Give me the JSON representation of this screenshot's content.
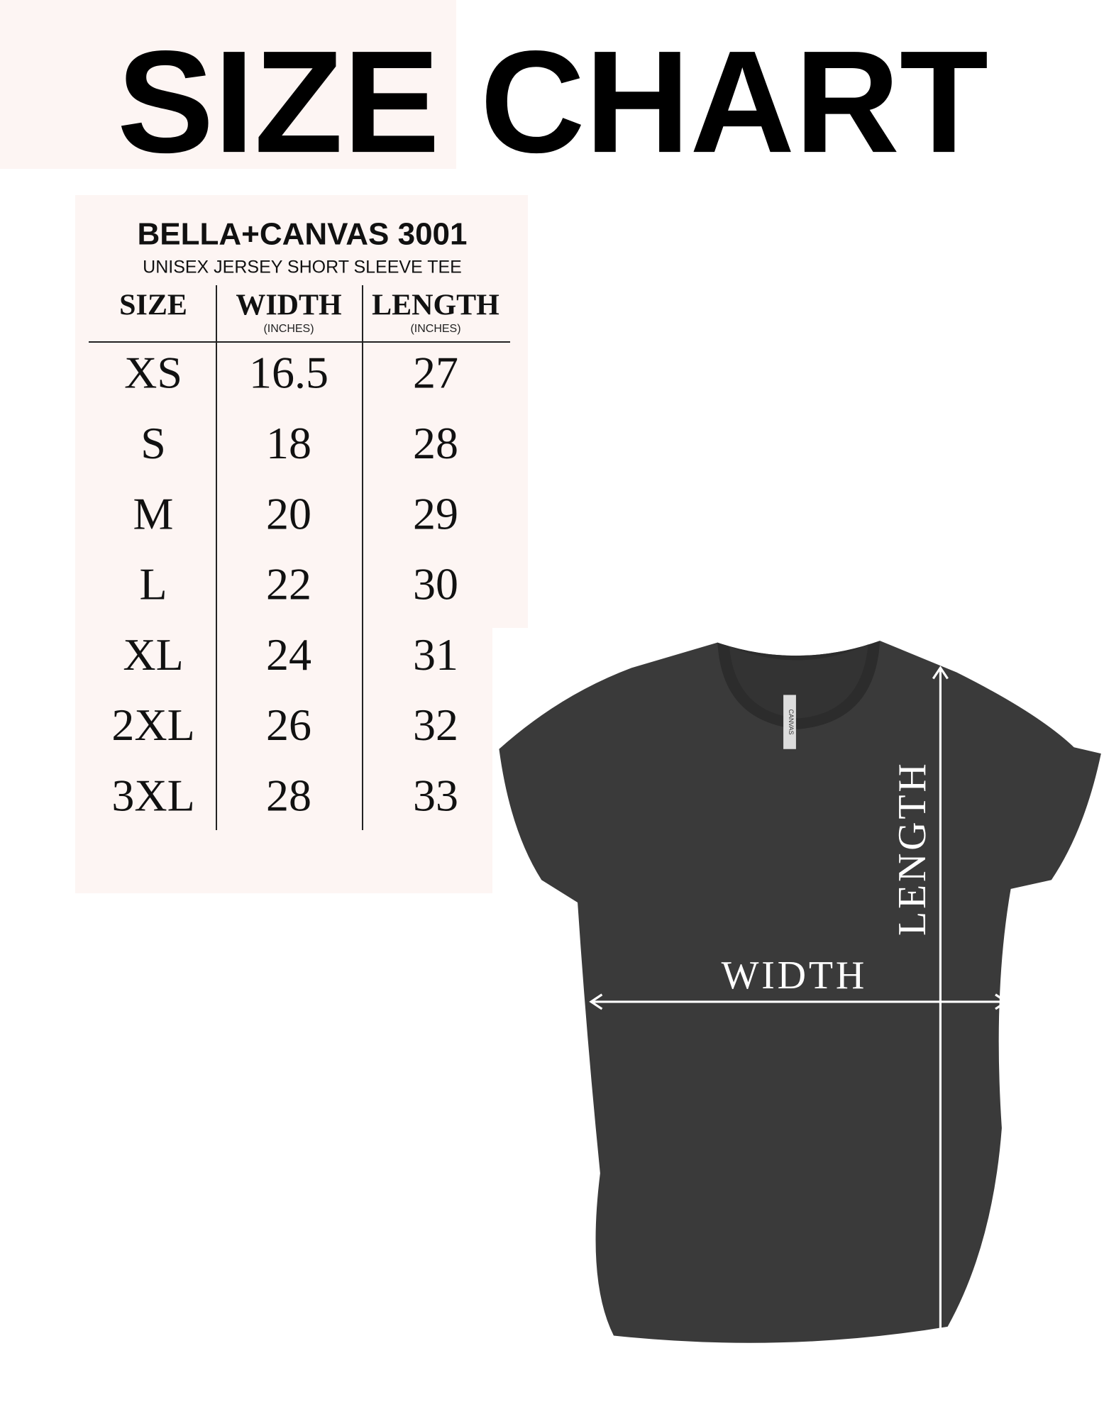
{
  "header": {
    "title": "SIZE CHART"
  },
  "table": {
    "brand": "BELLA+CANVAS 3001",
    "subtitle": "UNISEX JERSEY SHORT SLEEVE TEE",
    "headers": [
      {
        "label": "SIZE"
      },
      {
        "label": "WIDTH",
        "unit": "(INCHES)"
      },
      {
        "label": "LENGTH",
        "unit": "(INCHES)"
      }
    ],
    "rows": [
      [
        "XS",
        "16.5",
        "27"
      ],
      [
        "S",
        "18",
        "28"
      ],
      [
        "M",
        "20",
        "29"
      ],
      [
        "L",
        "22",
        "30"
      ],
      [
        "XL",
        "24",
        "31"
      ],
      [
        "2XL",
        "26",
        "32"
      ],
      [
        "3XL",
        "28",
        "33"
      ]
    ]
  },
  "diagram": {
    "width_label": "WIDTH",
    "length_label": "LENGTH",
    "tag": "CANVAS"
  }
}
